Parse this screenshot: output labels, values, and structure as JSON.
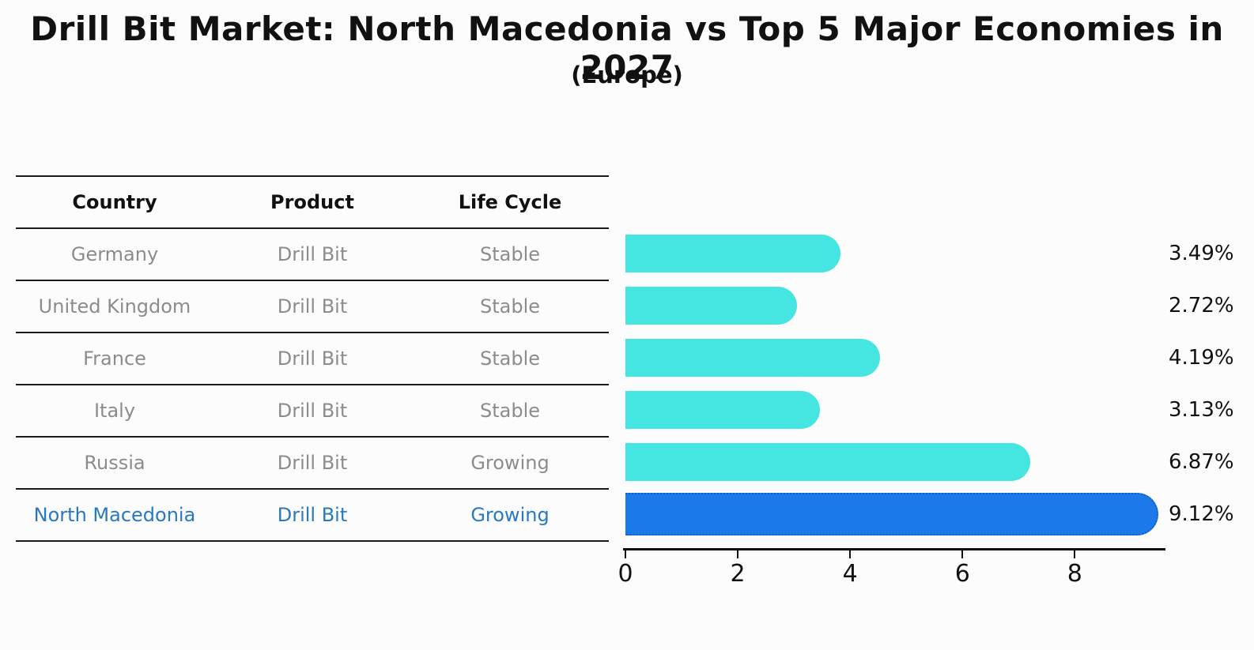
{
  "header": {
    "title": "Drill Bit Market: North Macedonia vs Top 5 Major Economies in 2027",
    "subtitle": "(Europe)"
  },
  "table": {
    "columns": [
      "Country",
      "Product",
      "Life Cycle"
    ],
    "rows": [
      {
        "country": "Germany",
        "product": "Drill Bit",
        "life_cycle": "Stable",
        "highlight": false
      },
      {
        "country": "United Kingdom",
        "product": "Drill Bit",
        "life_cycle": "Stable",
        "highlight": false
      },
      {
        "country": "France",
        "product": "Drill Bit",
        "life_cycle": "Stable",
        "highlight": false
      },
      {
        "country": "Italy",
        "product": "Drill Bit",
        "life_cycle": "Stable",
        "highlight": false
      },
      {
        "country": "Russia",
        "product": "Drill Bit",
        "life_cycle": "Growing",
        "highlight": false
      },
      {
        "country": "North Macedonia",
        "product": "Drill Bit",
        "life_cycle": "Growing",
        "highlight": true
      }
    ]
  },
  "chart_data": {
    "type": "bar",
    "orientation": "horizontal",
    "title": "Drill Bit Market: North Macedonia vs Top 5 Major Economies in 2027",
    "subtitle": "(Europe)",
    "categories": [
      "Germany",
      "United Kingdom",
      "France",
      "Italy",
      "Russia",
      "North Macedonia"
    ],
    "values": [
      3.49,
      2.72,
      4.19,
      3.13,
      6.87,
      9.12
    ],
    "value_labels": [
      "3.49%",
      "2.72%",
      "4.19%",
      "3.13%",
      "6.87%",
      "9.12%"
    ],
    "highlight_index": 5,
    "xlim": [
      0,
      9.6
    ],
    "x_ticks": [
      0,
      2,
      4,
      6,
      8
    ],
    "grid": false,
    "legend": "none",
    "bar_color": "#45E6E2",
    "highlight_bar_color": "#1B7AE8",
    "highlight_bar_border": "#0f5fd0"
  },
  "colors": {
    "text": "#111111",
    "muted_text": "#8c8c8c",
    "highlight_text": "#2878C2",
    "table_line": "#1a1a1a",
    "background": "#fcfcfc"
  }
}
